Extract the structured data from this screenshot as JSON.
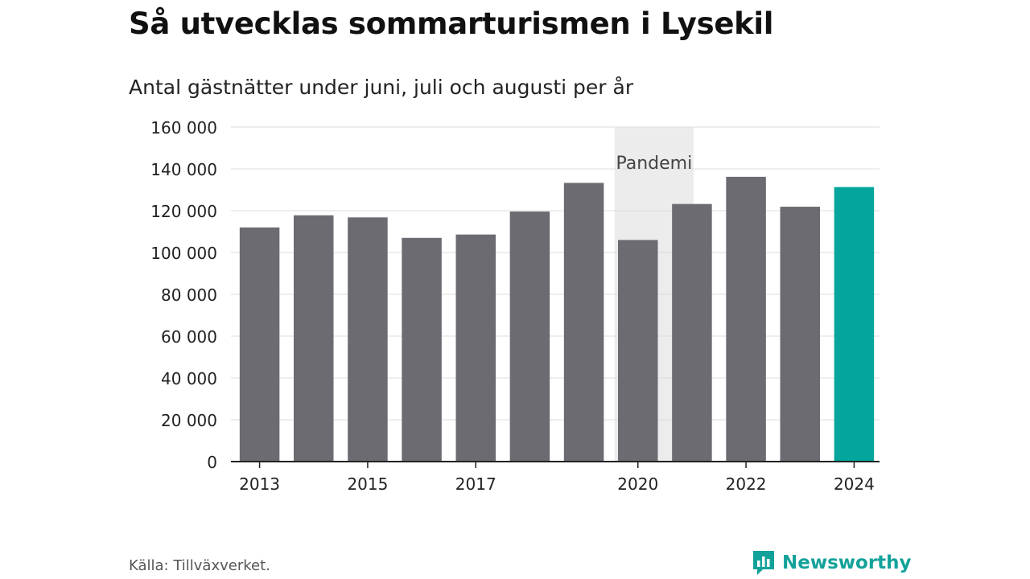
{
  "chart_data": {
    "type": "bar",
    "title": "Så utvecklas sommarturismen i Lysekil",
    "subtitle": "Antal gästnätter under juni, juli och augusti per år",
    "categories": [
      "2013",
      "2014",
      "2015",
      "2016",
      "2017",
      "2018",
      "2019",
      "2020",
      "2021",
      "2022",
      "2023",
      "2024"
    ],
    "values": [
      112000,
      117800,
      116800,
      107000,
      108600,
      119600,
      133300,
      106000,
      123200,
      136200,
      121900,
      131300
    ],
    "x_tick_labels": [
      "2013",
      "",
      "2015",
      "",
      "2017",
      "",
      "",
      "2020",
      "",
      "2022",
      "",
      "2024"
    ],
    "y_ticks": [
      0,
      20000,
      40000,
      60000,
      80000,
      100000,
      120000,
      140000,
      160000
    ],
    "y_tick_labels": [
      "0",
      "20 000",
      "40 000",
      "60 000",
      "80 000",
      "100 000",
      "120 000",
      "140 000",
      "160 000"
    ],
    "ylim": [
      0,
      160000
    ],
    "grid": true,
    "highlight_index": 11,
    "annotation": {
      "label": "Pandemi",
      "from_category": "2020",
      "to_category": "2021"
    },
    "colors": {
      "bar": "#6c6b72",
      "highlight": "#03a59c",
      "band": "#ececec",
      "grid": "#dcdcdc",
      "axis": "#222222",
      "tick_text": "#222222",
      "annotation_text": "#444444"
    }
  },
  "footer": {
    "source": "Källa: Tillväxverket.",
    "brand": "Newsworthy",
    "brand_icon": "newsworthy-logo-icon",
    "brand_color": "#12a29a"
  }
}
